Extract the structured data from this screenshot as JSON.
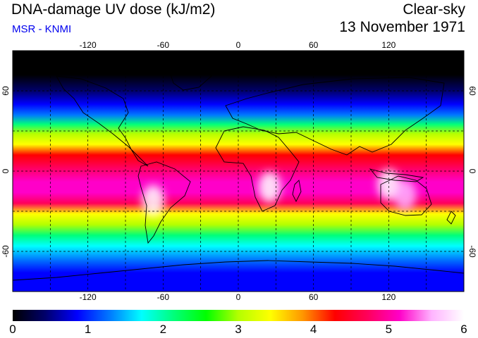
{
  "header": {
    "title": "DNA-damage UV dose (kJ/m2)",
    "source": "MSR - KNMI",
    "sky": "Clear-sky",
    "date": "13 November 1971"
  },
  "map": {
    "lon_ticks": [
      "-120",
      "-60",
      "0",
      "60",
      "120"
    ],
    "lat_ticks": [
      "60",
      "0",
      "-60"
    ],
    "bands": [
      {
        "lat": 90,
        "value": 0.0
      },
      {
        "lat": 72,
        "value": 0.05
      },
      {
        "lat": 60,
        "value": 0.25
      },
      {
        "lat": 50,
        "value": 0.7
      },
      {
        "lat": 42,
        "value": 1.4
      },
      {
        "lat": 35,
        "value": 2.2
      },
      {
        "lat": 28,
        "value": 2.9
      },
      {
        "lat": 20,
        "value": 3.6
      },
      {
        "lat": 12,
        "value": 4.2
      },
      {
        "lat": 3,
        "value": 4.6
      },
      {
        "lat": -8,
        "value": 5.0
      },
      {
        "lat": -16,
        "value": 5.2
      },
      {
        "lat": -24,
        "value": 4.5
      },
      {
        "lat": -32,
        "value": 3.6
      },
      {
        "lat": -40,
        "value": 2.8
      },
      {
        "lat": -48,
        "value": 2.1
      },
      {
        "lat": -56,
        "value": 1.6
      },
      {
        "lat": -66,
        "value": 1.2
      },
      {
        "lat": -76,
        "value": 0.9
      },
      {
        "lat": -90,
        "value": 0.8
      }
    ],
    "hotspots": [
      {
        "name": "south-america",
        "lon": -68,
        "lat": -22,
        "value": 6.0
      },
      {
        "name": "southern-africa",
        "lon": 25,
        "lat": -12,
        "value": 5.8
      },
      {
        "name": "indonesia",
        "lon": 120,
        "lat": -10,
        "value": 5.9
      },
      {
        "name": "north-australia",
        "lon": 133,
        "lat": -18,
        "value": 5.6
      }
    ]
  },
  "colorbar": {
    "labels": [
      "0",
      "1",
      "2",
      "3",
      "4",
      "5",
      "6"
    ],
    "colors": [
      "#000000",
      "#00006a",
      "#0000ff",
      "#0078ff",
      "#00ffff",
      "#00ff7a",
      "#00ff00",
      "#b4ff00",
      "#ffff00",
      "#ff9600",
      "#ff0000",
      "#ff005a",
      "#ff00c8",
      "#ffb4ff",
      "#ffffff"
    ]
  }
}
